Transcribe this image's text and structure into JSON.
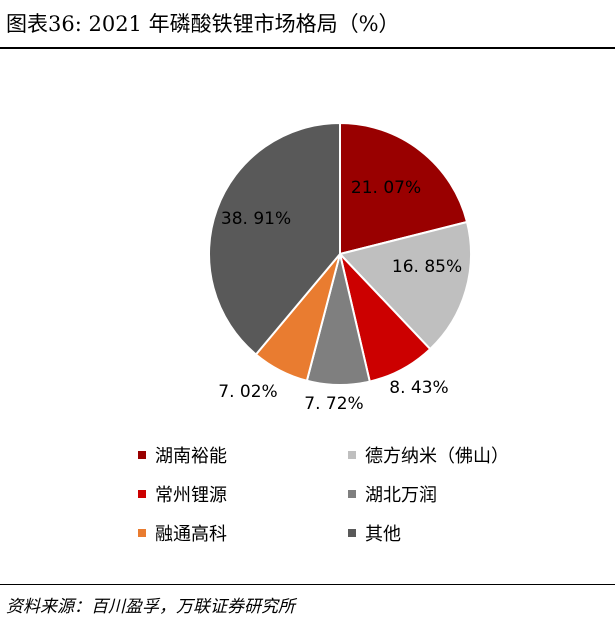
{
  "header": {
    "title": "图表36:  2021 年磷酸铁锂市场格局（%）"
  },
  "chart_data": {
    "type": "pie",
    "series": [
      {
        "name": "湖南裕能",
        "value": 21.07,
        "label": "21. 07%",
        "color": "#990000"
      },
      {
        "name": "德方纳米（佛山）",
        "value": 16.85,
        "label": "16. 85%",
        "color": "#bfbfbf"
      },
      {
        "name": "常州锂源",
        "value": 8.43,
        "label": "8. 43%",
        "color": "#cc0000"
      },
      {
        "name": "湖北万润",
        "value": 7.72,
        "label": "7. 72%",
        "color": "#7f7f7f"
      },
      {
        "name": "融通高科",
        "value": 7.02,
        "label": "7. 02%",
        "color": "#e97c30"
      },
      {
        "name": "其他",
        "value": 38.91,
        "label": "38. 91%",
        "color": "#595959"
      }
    ],
    "legend_position": "bottom"
  },
  "footer": {
    "source": "资料来源：百川盈孚，万联证券研究所"
  }
}
